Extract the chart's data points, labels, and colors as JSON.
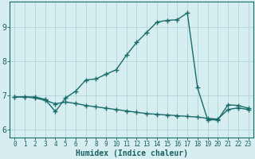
{
  "title": "",
  "xlabel": "Humidex (Indice chaleur)",
  "ylabel": "",
  "background_color": "#d6eef0",
  "grid_color": "#aed4d8",
  "line_color": "#1a6b6b",
  "x_values": [
    0,
    1,
    2,
    3,
    4,
    5,
    6,
    7,
    8,
    9,
    10,
    11,
    12,
    13,
    14,
    15,
    16,
    17,
    18,
    19,
    20,
    21,
    22,
    23
  ],
  "line1_y": [
    6.95,
    6.95,
    6.95,
    6.88,
    6.52,
    6.92,
    7.12,
    7.45,
    7.48,
    7.62,
    7.75,
    8.18,
    8.55,
    8.85,
    9.15,
    9.2,
    9.22,
    9.42,
    7.22,
    6.28,
    6.28,
    6.72,
    6.7,
    6.62
  ],
  "line2_y": [
    6.95,
    6.95,
    6.92,
    6.85,
    6.75,
    6.8,
    6.76,
    6.7,
    6.66,
    6.62,
    6.58,
    6.54,
    6.5,
    6.46,
    6.44,
    6.42,
    6.4,
    6.38,
    6.36,
    6.32,
    6.3,
    6.58,
    6.63,
    6.58
  ],
  "ylim": [
    5.75,
    9.75
  ],
  "xlim": [
    -0.5,
    23.5
  ],
  "yticks": [
    6,
    7,
    8,
    9
  ],
  "xticks": [
    0,
    1,
    2,
    3,
    4,
    5,
    6,
    7,
    8,
    9,
    10,
    11,
    12,
    13,
    14,
    15,
    16,
    17,
    18,
    19,
    20,
    21,
    22,
    23
  ],
  "marker": "+",
  "markersize": 4,
  "markeredgewidth": 1.0,
  "linewidth": 1.0,
  "font_color": "#1a5f5f",
  "xlabel_fontsize": 7,
  "tick_fontsize_x": 5.5,
  "tick_fontsize_y": 7
}
